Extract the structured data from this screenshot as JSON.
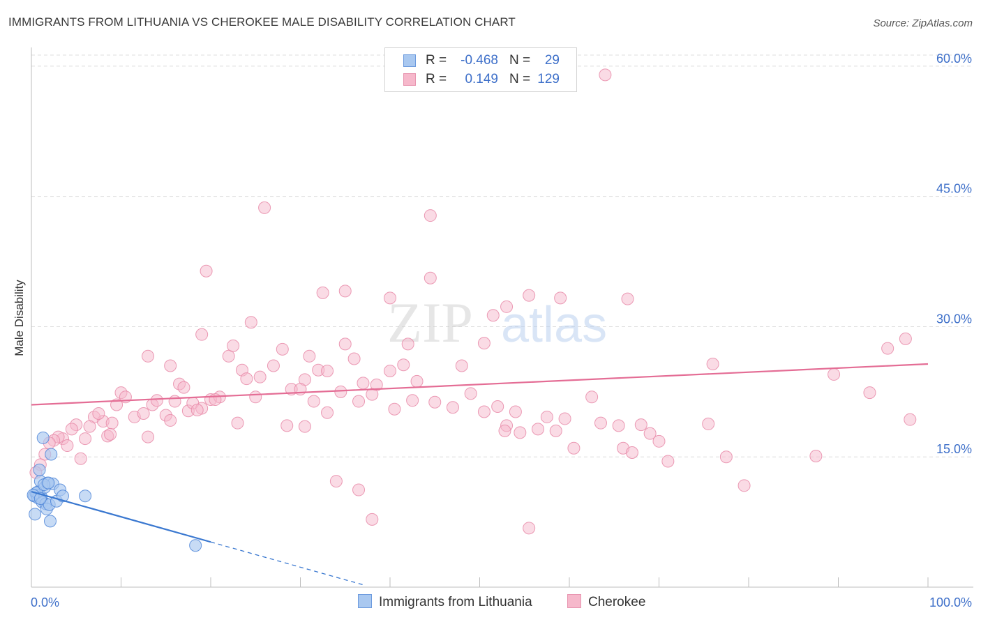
{
  "header": {
    "title": "IMMIGRANTS FROM LITHUANIA VS CHEROKEE MALE DISABILITY CORRELATION CHART",
    "source": "Source: ZipAtlas.com"
  },
  "legend": {
    "rows": [
      {
        "r_label": "R =",
        "r_value": "-0.468",
        "n_label": "N =",
        "n_value": "29"
      },
      {
        "r_label": "R =",
        "r_value": "0.149",
        "n_label": "N =",
        "n_value": "129"
      }
    ]
  },
  "watermark": {
    "zip": "ZIP",
    "atlas": "atlas"
  },
  "colors": {
    "blue_fill": "#a9c8f0",
    "blue_stroke": "#4f86d8",
    "blue_line": "#3a78d0",
    "pink_fill": "#f6b8cb",
    "pink_stroke": "#e88aa8",
    "pink_line": "#e46d95",
    "tick_text": "#3d6fc9",
    "grid": "#dcdcdc"
  },
  "chart_data": {
    "type": "scatter",
    "title": "IMMIGRANTS FROM LITHUANIA VS CHEROKEE MALE DISABILITY CORRELATION CHART",
    "xlabel": "",
    "ylabel": "Male Disability",
    "xlim": [
      0,
      100
    ],
    "ylim": [
      0,
      62
    ],
    "x_tick_labels": {
      "left": "0.0%",
      "right": "100.0%"
    },
    "y_ticks": [
      {
        "value": 15,
        "label": "15.0%"
      },
      {
        "value": 30,
        "label": "30.0%"
      },
      {
        "value": 45,
        "label": "45.0%"
      },
      {
        "value": 60,
        "label": "60.0%"
      }
    ],
    "grid": true,
    "series": [
      {
        "name": "Immigrants from Lithuania",
        "color": "blue",
        "trend": {
          "x0": 0,
          "y0": 11.0,
          "x1": 20,
          "y1": 5.2,
          "dash_to_x": 37
        },
        "points": [
          [
            0.3,
            10.5
          ],
          [
            0.5,
            10.8
          ],
          [
            0.7,
            10.3
          ],
          [
            0.8,
            11.0
          ],
          [
            0.9,
            10.6
          ],
          [
            1.0,
            12.2
          ],
          [
            1.1,
            10.4
          ],
          [
            1.2,
            9.8
          ],
          [
            1.3,
            17.2
          ],
          [
            1.5,
            11.5
          ],
          [
            1.6,
            9.6
          ],
          [
            1.7,
            9.0
          ],
          [
            1.8,
            12.0
          ],
          [
            2.0,
            9.5
          ],
          [
            2.1,
            7.6
          ],
          [
            2.2,
            15.3
          ],
          [
            2.4,
            11.9
          ],
          [
            2.8,
            9.9
          ],
          [
            3.2,
            11.2
          ],
          [
            3.5,
            10.5
          ],
          [
            6.0,
            10.5
          ],
          [
            0.4,
            8.4
          ],
          [
            0.6,
            10.9
          ],
          [
            1.4,
            11.8
          ],
          [
            1.9,
            12.0
          ],
          [
            0.2,
            10.6
          ],
          [
            1.0,
            10.2
          ],
          [
            18.3,
            4.8
          ],
          [
            0.9,
            13.5
          ]
        ]
      },
      {
        "name": "Cherokee",
        "color": "pink",
        "trend": {
          "x0": 0,
          "y0": 21.0,
          "x1": 100,
          "y1": 25.7
        },
        "points": [
          [
            55.5,
            6.8
          ],
          [
            38.0,
            7.8
          ],
          [
            36.5,
            11.2
          ],
          [
            34.0,
            12.2
          ],
          [
            60.5,
            16.0
          ],
          [
            71.0,
            14.5
          ],
          [
            75.5,
            18.8
          ],
          [
            87.5,
            15.1
          ],
          [
            79.5,
            11.7
          ],
          [
            77.5,
            15.0
          ],
          [
            89.5,
            24.5
          ],
          [
            93.5,
            22.4
          ],
          [
            95.5,
            27.5
          ],
          [
            97.5,
            28.6
          ],
          [
            98.0,
            19.3
          ],
          [
            76.0,
            25.7
          ],
          [
            66.5,
            33.2
          ],
          [
            64.0,
            59.0
          ],
          [
            55.5,
            33.6
          ],
          [
            59.0,
            33.3
          ],
          [
            53.0,
            32.3
          ],
          [
            51.5,
            31.3
          ],
          [
            50.5,
            28.1
          ],
          [
            44.5,
            42.8
          ],
          [
            44.5,
            35.6
          ],
          [
            40.0,
            33.3
          ],
          [
            35.0,
            34.1
          ],
          [
            32.5,
            33.9
          ],
          [
            26.0,
            43.7
          ],
          [
            24.5,
            30.5
          ],
          [
            19.5,
            36.4
          ],
          [
            19.0,
            29.1
          ],
          [
            13.0,
            26.6
          ],
          [
            15.5,
            25.5
          ],
          [
            22.0,
            26.6
          ],
          [
            22.5,
            27.8
          ],
          [
            23.5,
            25.0
          ],
          [
            24.0,
            24.0
          ],
          [
            25.5,
            24.2
          ],
          [
            27.0,
            25.5
          ],
          [
            28.0,
            27.4
          ],
          [
            29.0,
            22.8
          ],
          [
            30.5,
            23.9
          ],
          [
            31.0,
            26.6
          ],
          [
            32.0,
            25.0
          ],
          [
            33.0,
            24.9
          ],
          [
            35.0,
            28.0
          ],
          [
            36.0,
            26.3
          ],
          [
            37.0,
            23.5
          ],
          [
            38.5,
            23.3
          ],
          [
            40.0,
            24.9
          ],
          [
            41.5,
            25.6
          ],
          [
            42.0,
            28.0
          ],
          [
            43.0,
            23.7
          ],
          [
            10.0,
            22.4
          ],
          [
            9.5,
            21.0
          ],
          [
            10.5,
            21.9
          ],
          [
            11.5,
            19.6
          ],
          [
            12.5,
            20.0
          ],
          [
            13.5,
            21.0
          ],
          [
            14.0,
            21.5
          ],
          [
            15.0,
            19.8
          ],
          [
            15.5,
            19.2
          ],
          [
            16.0,
            21.4
          ],
          [
            16.5,
            23.4
          ],
          [
            17.0,
            23.0
          ],
          [
            17.5,
            20.3
          ],
          [
            18.0,
            21.2
          ],
          [
            19.0,
            20.6
          ],
          [
            20.0,
            21.6
          ],
          [
            21.0,
            21.9
          ],
          [
            8.0,
            19.1
          ],
          [
            7.0,
            19.6
          ],
          [
            6.5,
            18.5
          ],
          [
            7.5,
            20.0
          ],
          [
            8.5,
            17.4
          ],
          [
            9.0,
            18.9
          ],
          [
            5.0,
            18.7
          ],
          [
            4.5,
            18.2
          ],
          [
            3.5,
            17.1
          ],
          [
            3.0,
            17.3
          ],
          [
            2.5,
            16.9
          ],
          [
            2.0,
            16.6
          ],
          [
            1.5,
            15.3
          ],
          [
            1.0,
            14.1
          ],
          [
            0.5,
            13.2
          ],
          [
            4.0,
            16.3
          ],
          [
            5.5,
            14.8
          ],
          [
            6.0,
            17.1
          ],
          [
            8.8,
            17.6
          ],
          [
            13.0,
            17.3
          ],
          [
            18.5,
            20.4
          ],
          [
            20.5,
            21.6
          ],
          [
            23.0,
            18.9
          ],
          [
            25.0,
            21.9
          ],
          [
            28.5,
            18.6
          ],
          [
            30.0,
            22.8
          ],
          [
            31.5,
            21.4
          ],
          [
            33.0,
            20.1
          ],
          [
            34.5,
            22.5
          ],
          [
            36.5,
            21.4
          ],
          [
            38.0,
            22.2
          ],
          [
            40.5,
            20.5
          ],
          [
            42.5,
            21.5
          ],
          [
            45.0,
            21.3
          ],
          [
            47.0,
            20.7
          ],
          [
            49.0,
            22.3
          ],
          [
            50.5,
            20.2
          ],
          [
            52.0,
            20.8
          ],
          [
            53.0,
            18.6
          ],
          [
            54.5,
            17.8
          ],
          [
            56.5,
            18.2
          ],
          [
            57.5,
            19.6
          ],
          [
            58.5,
            18.0
          ],
          [
            59.5,
            19.4
          ],
          [
            62.5,
            21.9
          ],
          [
            63.5,
            18.9
          ],
          [
            65.5,
            18.6
          ],
          [
            66.0,
            16.0
          ],
          [
            67.0,
            15.5
          ],
          [
            68.0,
            18.7
          ],
          [
            69.0,
            17.7
          ],
          [
            70.0,
            16.8
          ],
          [
            52.8,
            18.0
          ],
          [
            54.0,
            20.2
          ],
          [
            48.0,
            25.5
          ],
          [
            30.5,
            18.5
          ]
        ]
      }
    ]
  },
  "bottom_legend": {
    "items": [
      {
        "label": "Immigrants from Lithuania"
      },
      {
        "label": "Cherokee"
      }
    ]
  }
}
